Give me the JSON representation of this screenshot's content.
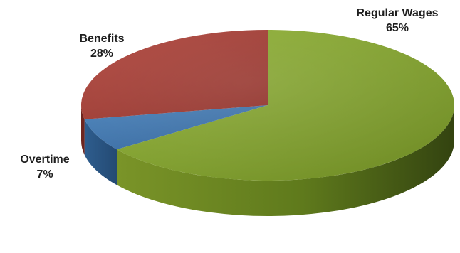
{
  "chart_data": {
    "type": "pie",
    "title": "",
    "slices": [
      {
        "label": "Regular Wages",
        "percent_label": "65%",
        "value": 65,
        "color": "#7f9b2c"
      },
      {
        "label": "Overtime",
        "percent_label": "7%",
        "value": 7,
        "color": "#3f73a8"
      },
      {
        "label": "Benefits",
        "percent_label": "28%",
        "value": 28,
        "color": "#a63b33"
      }
    ],
    "style": "3d-tilted",
    "legend": "none"
  }
}
